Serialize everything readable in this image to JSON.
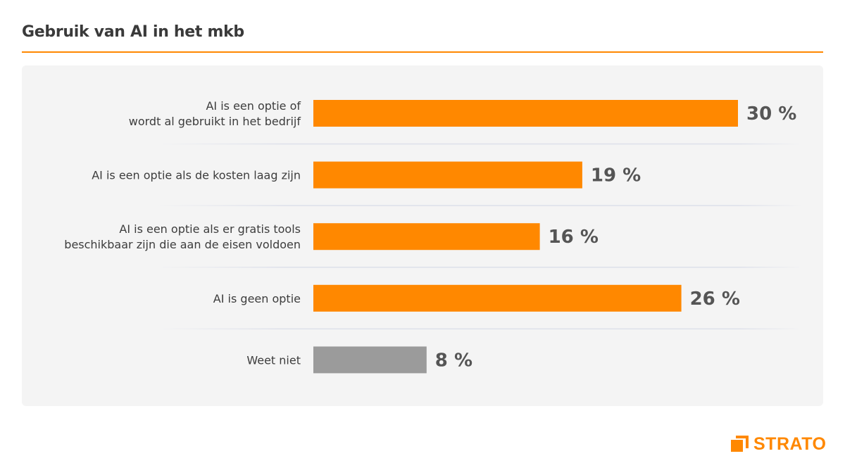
{
  "title": "Gebruik van AI in het mkb",
  "logo": {
    "text": "STRATO",
    "color": "#ff8800"
  },
  "chart_data": {
    "type": "bar",
    "orientation": "horizontal",
    "categories": [
      [
        "AI is een optie of",
        "wordt al gebruikt in het bedrijf"
      ],
      [
        "AI is een optie als de kosten laag zijn"
      ],
      [
        "AI is een optie als er gratis tools",
        "beschikbaar zijn die aan de eisen voldoen"
      ],
      [
        "AI is geen optie"
      ],
      [
        "Weet niet"
      ]
    ],
    "values": [
      30,
      19,
      16,
      26,
      8
    ],
    "data_labels": [
      "30 %",
      "19 %",
      "16 %",
      "26 %",
      "8 %"
    ],
    "colors": [
      "#ff8800",
      "#ff8800",
      "#ff8800",
      "#ff8800",
      "#9b9b9b"
    ],
    "unit": "%",
    "xlim": [
      0,
      30
    ],
    "grid": false,
    "legend": "none"
  }
}
